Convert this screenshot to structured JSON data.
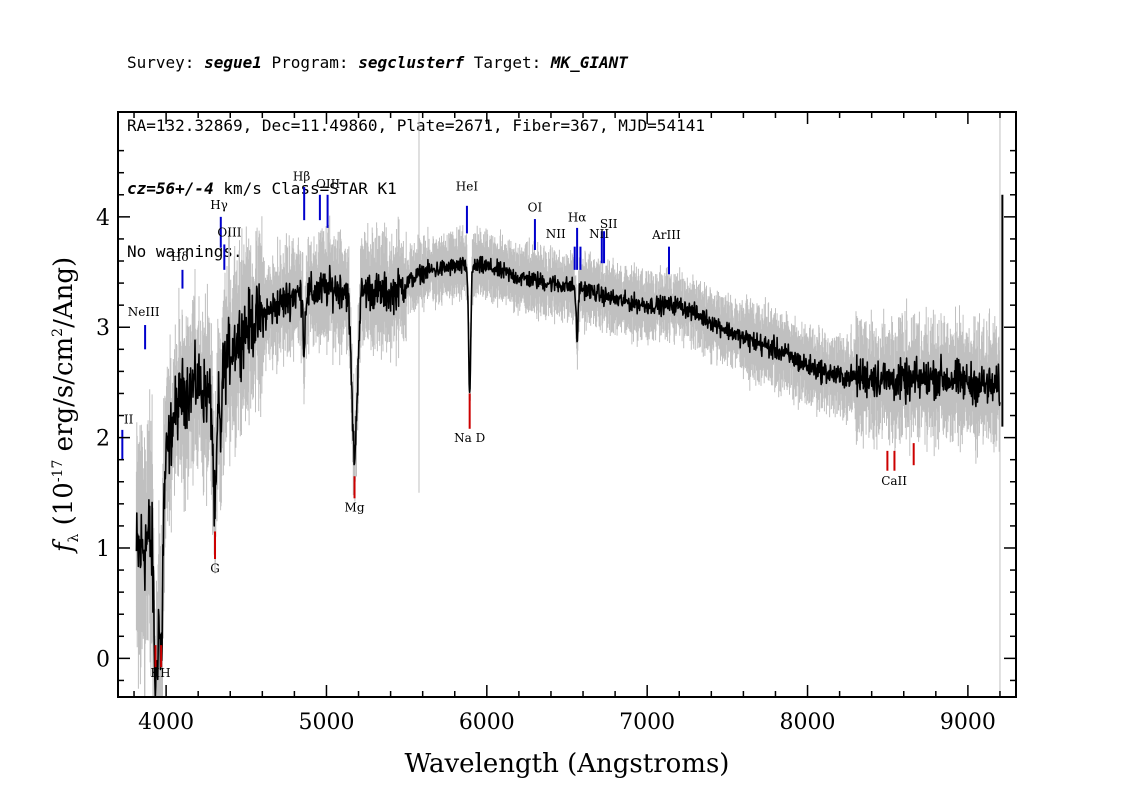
{
  "header": {
    "line1": {
      "survey_label": "Survey: ",
      "survey": "segue1",
      "program_label": " Program: ",
      "program": "segclusterf",
      "target_label": " Target: ",
      "target": "MK_GIANT"
    },
    "line2": "RA=132.32869, Dec=11.49860, Plate=2671, Fiber=367, MJD=54141",
    "line3": {
      "cz": "cz=56+/-4",
      "rest": " km/s Class=STAR K1"
    },
    "line4": "No warnings."
  },
  "chart_data": {
    "type": "line",
    "xlabel": "Wavelength (Angstroms)",
    "ylabel_prefix": "f",
    "ylabel_sub": "λ",
    "ylabel_main": "(10",
    "ylabel_exp": "-17",
    "ylabel_rest": " erg/s/cm",
    "ylabel_exp2": "2",
    "ylabel_tail": "/Ang)",
    "xlim": [
      3700,
      9300
    ],
    "ylim": [
      -0.35,
      4.95
    ],
    "xticks": [
      "4000",
      "5000",
      "6000",
      "7000",
      "8000",
      "9000"
    ],
    "yticks": [
      "0",
      "1",
      "2",
      "3",
      "4"
    ],
    "colors": {
      "flux": "#000000",
      "error": "#c0c0c0",
      "emission": "#0000cc",
      "absorption": "#cc0000"
    },
    "continuum": [
      [
        3800,
        0.9
      ],
      [
        3900,
        1.1
      ],
      [
        3950,
        0.5
      ],
      [
        4000,
        1.8
      ],
      [
        4050,
        2.2
      ],
      [
        4100,
        2.4
      ],
      [
        4200,
        2.5
      ],
      [
        4300,
        2.3
      ],
      [
        4400,
        2.8
      ],
      [
        4500,
        3.0
      ],
      [
        4600,
        3.1
      ],
      [
        4700,
        3.2
      ],
      [
        4800,
        3.3
      ],
      [
        4900,
        3.3
      ],
      [
        5000,
        3.35
      ],
      [
        5100,
        3.35
      ],
      [
        5200,
        3.35
      ],
      [
        5400,
        3.3
      ],
      [
        5600,
        3.5
      ],
      [
        5800,
        3.55
      ],
      [
        6000,
        3.55
      ],
      [
        6200,
        3.45
      ],
      [
        6400,
        3.4
      ],
      [
        6600,
        3.35
      ],
      [
        6800,
        3.25
      ],
      [
        7000,
        3.2
      ],
      [
        7200,
        3.2
      ],
      [
        7400,
        3.05
      ],
      [
        7600,
        2.9
      ],
      [
        7800,
        2.8
      ],
      [
        8000,
        2.65
      ],
      [
        8200,
        2.55
      ],
      [
        8400,
        2.55
      ],
      [
        8600,
        2.5
      ],
      [
        8800,
        2.55
      ],
      [
        9000,
        2.5
      ],
      [
        9200,
        2.45
      ]
    ],
    "dips": [
      {
        "x": 3934,
        "depth": 1.0,
        "width": 12
      },
      {
        "x": 3969,
        "depth": 1.0,
        "width": 12
      },
      {
        "x": 4305,
        "depth": 1.0,
        "width": 15
      },
      {
        "x": 5175,
        "depth": 1.5,
        "width": 25
      },
      {
        "x": 5893,
        "depth": 1.1,
        "width": 10
      },
      {
        "x": 6563,
        "depth": 0.5,
        "width": 8
      },
      {
        "x": 4861,
        "depth": 0.5,
        "width": 8
      },
      {
        "x": 4340,
        "depth": 0.5,
        "width": 8
      }
    ],
    "emission_lines": [
      {
        "label": "",
        "label2": "II",
        "x": 3727,
        "y0": 2.07,
        "y1": 1.8,
        "lx": 3729,
        "ly": 2.13
      },
      {
        "label": "NeIII",
        "x": 3869,
        "y0": 3.02,
        "y1": 2.8,
        "lx": 3860,
        "ly": 3.1
      },
      {
        "label": "Hδ",
        "x": 4102,
        "y0": 3.52,
        "y1": 3.35,
        "lx": 4085,
        "ly": 3.6
      },
      {
        "label": "Hγ",
        "x": 4341,
        "y0": 4.0,
        "y1": 3.72,
        "lx": 4330,
        "ly": 4.07
      },
      {
        "label": "OIII",
        "x": 4363,
        "y0": 3.75,
        "y1": 3.52,
        "lx": 4395,
        "ly": 3.82
      },
      {
        "label": "Hβ",
        "x": 4861,
        "y0": 4.27,
        "y1": 3.97,
        "lx": 4845,
        "ly": 4.33
      },
      {
        "label": "OIII",
        "x": 4959,
        "y0": 4.2,
        "y1": 3.97,
        "lx": 5010,
        "ly": 4.26
      },
      {
        "label": "",
        "x": 5007,
        "y0": 4.2,
        "y1": 3.9
      },
      {
        "label": "HeI",
        "x": 5876,
        "y0": 4.1,
        "y1": 3.85,
        "lx": 5876,
        "ly": 4.24
      },
      {
        "label": "OI",
        "x": 6300,
        "y0": 3.98,
        "y1": 3.7,
        "lx": 6300,
        "ly": 4.05
      },
      {
        "label": "NII",
        "x": 6548,
        "y0": 3.73,
        "y1": 3.52,
        "lx": 6430,
        "ly": 3.81
      },
      {
        "label": "Hα",
        "x": 6563,
        "y0": 3.9,
        "y1": 3.52,
        "lx": 6563,
        "ly": 3.96
      },
      {
        "label": "",
        "x": 6584,
        "y0": 3.73,
        "y1": 3.52
      },
      {
        "label": "NII",
        "x": 6717,
        "y0": 3.87,
        "y1": 3.58,
        "lx": 6700,
        "ly": 3.81
      },
      {
        "label": "SII",
        "x": 6731,
        "y0": 3.87,
        "y1": 3.58,
        "lx": 6760,
        "ly": 3.9
      },
      {
        "label": "ArIII",
        "x": 7136,
        "y0": 3.73,
        "y1": 3.48,
        "lx": 7120,
        "ly": 3.8
      }
    ],
    "absorption_lines": [
      {
        "label": "K",
        "x": 3934,
        "y0": 0.12,
        "y1": -0.08,
        "lx": 3930,
        "ly": -0.17
      },
      {
        "label": "H",
        "x": 3969,
        "y0": 0.12,
        "y1": -0.08,
        "lx": 3995,
        "ly": -0.17
      },
      {
        "label": "G",
        "x": 4305,
        "y0": 1.15,
        "y1": 0.9,
        "lx": 4305,
        "ly": 0.78
      },
      {
        "label": "Mg",
        "x": 5175,
        "y0": 1.65,
        "y1": 1.45,
        "lx": 5175,
        "ly": 1.33
      },
      {
        "label": "Na D",
        "x": 5893,
        "y0": 2.4,
        "y1": 2.08,
        "lx": 5893,
        "ly": 1.96
      },
      {
        "label": "CaII",
        "x": 8498,
        "y0": 1.88,
        "y1": 1.7,
        "lx": 8540,
        "ly": 1.57
      },
      {
        "label": "",
        "x": 8542,
        "y0": 1.88,
        "y1": 1.7
      },
      {
        "label": "",
        "x": 8662,
        "y0": 1.95,
        "y1": 1.75
      }
    ]
  }
}
